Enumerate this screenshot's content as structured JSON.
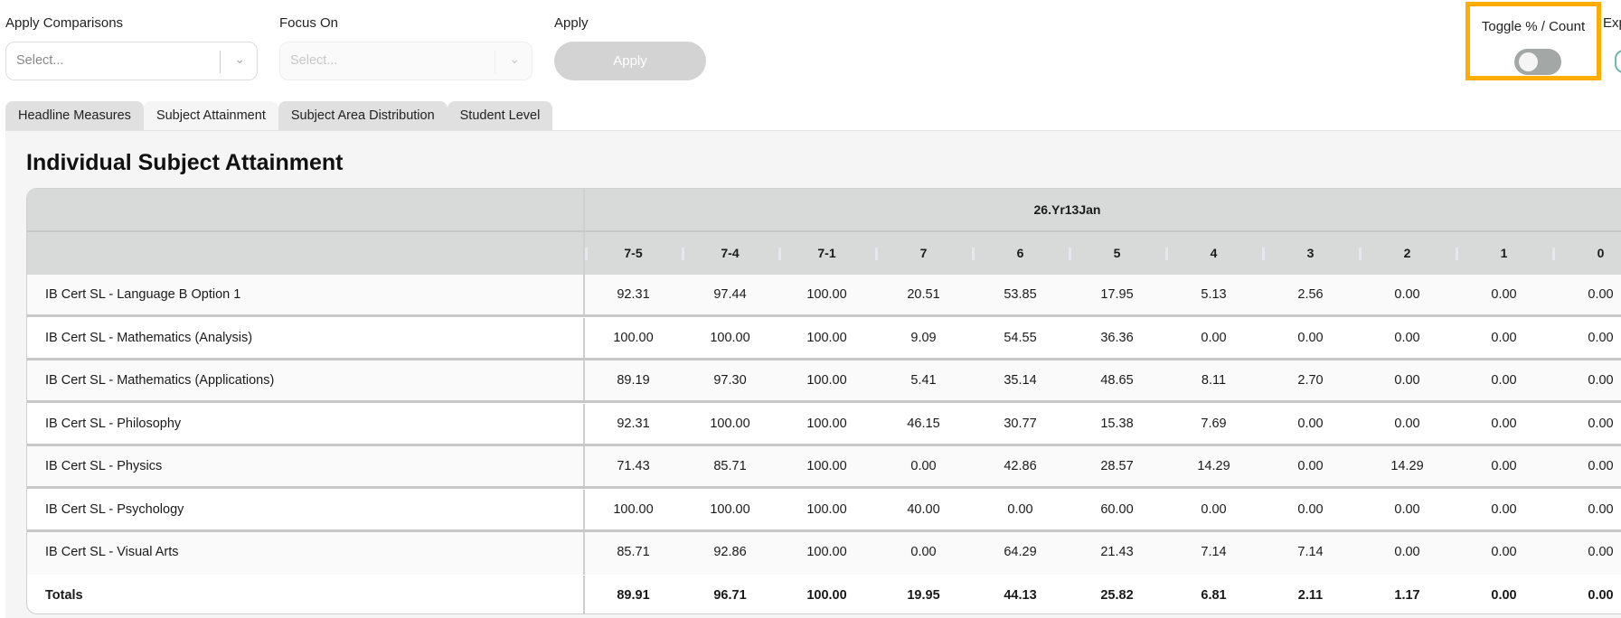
{
  "filters": {
    "comparisons": {
      "label": "Apply Comparisons",
      "placeholder": "Select..."
    },
    "focus": {
      "label": "Focus On",
      "placeholder": "Select..."
    },
    "apply": {
      "label": "Apply",
      "button": "Apply"
    }
  },
  "toggle": {
    "label": "Toggle % / Count",
    "state": "off"
  },
  "export": {
    "label": "Exp"
  },
  "tabs": [
    {
      "label": "Headline Measures"
    },
    {
      "label": "Subject Attainment",
      "active": true
    },
    {
      "label": "Subject Area Distribution"
    },
    {
      "label": "Student Level"
    }
  ],
  "section": {
    "title": "Individual Subject Attainment"
  },
  "table": {
    "group": "26.Yr13Jan",
    "columns": [
      "7-5",
      "7-4",
      "7-1",
      "7",
      "6",
      "5",
      "4",
      "3",
      "2",
      "1",
      "0"
    ],
    "rows": [
      {
        "label": "IB Cert SL - Language B Option 1",
        "values": [
          "92.31",
          "97.44",
          "100.00",
          "20.51",
          "53.85",
          "17.95",
          "5.13",
          "2.56",
          "0.00",
          "0.00",
          "0.00"
        ]
      },
      {
        "label": "IB Cert SL - Mathematics (Analysis)",
        "values": [
          "100.00",
          "100.00",
          "100.00",
          "9.09",
          "54.55",
          "36.36",
          "0.00",
          "0.00",
          "0.00",
          "0.00",
          "0.00"
        ]
      },
      {
        "label": "IB Cert SL - Mathematics (Applications)",
        "values": [
          "89.19",
          "97.30",
          "100.00",
          "5.41",
          "35.14",
          "48.65",
          "8.11",
          "2.70",
          "0.00",
          "0.00",
          "0.00"
        ]
      },
      {
        "label": "IB Cert SL - Philosophy",
        "values": [
          "92.31",
          "100.00",
          "100.00",
          "46.15",
          "30.77",
          "15.38",
          "7.69",
          "0.00",
          "0.00",
          "0.00",
          "0.00"
        ]
      },
      {
        "label": "IB Cert SL - Physics",
        "values": [
          "71.43",
          "85.71",
          "100.00",
          "0.00",
          "42.86",
          "28.57",
          "14.29",
          "0.00",
          "14.29",
          "0.00",
          "0.00"
        ]
      },
      {
        "label": "IB Cert SL - Psychology",
        "values": [
          "100.00",
          "100.00",
          "100.00",
          "40.00",
          "0.00",
          "60.00",
          "0.00",
          "0.00",
          "0.00",
          "0.00",
          "0.00"
        ]
      },
      {
        "label": "IB Cert SL - Visual Arts",
        "values": [
          "85.71",
          "92.86",
          "100.00",
          "0.00",
          "64.29",
          "21.43",
          "7.14",
          "7.14",
          "0.00",
          "0.00",
          "0.00"
        ]
      }
    ],
    "totals": {
      "label": "Totals",
      "values": [
        "89.91",
        "96.71",
        "100.00",
        "19.95",
        "44.13",
        "25.82",
        "6.81",
        "2.11",
        "1.17",
        "0.00",
        "0.00"
      ]
    }
  },
  "colors": {
    "highlight": "#ffad00",
    "header": "#d8dad9",
    "toggle_off": "#a3a8a7"
  }
}
